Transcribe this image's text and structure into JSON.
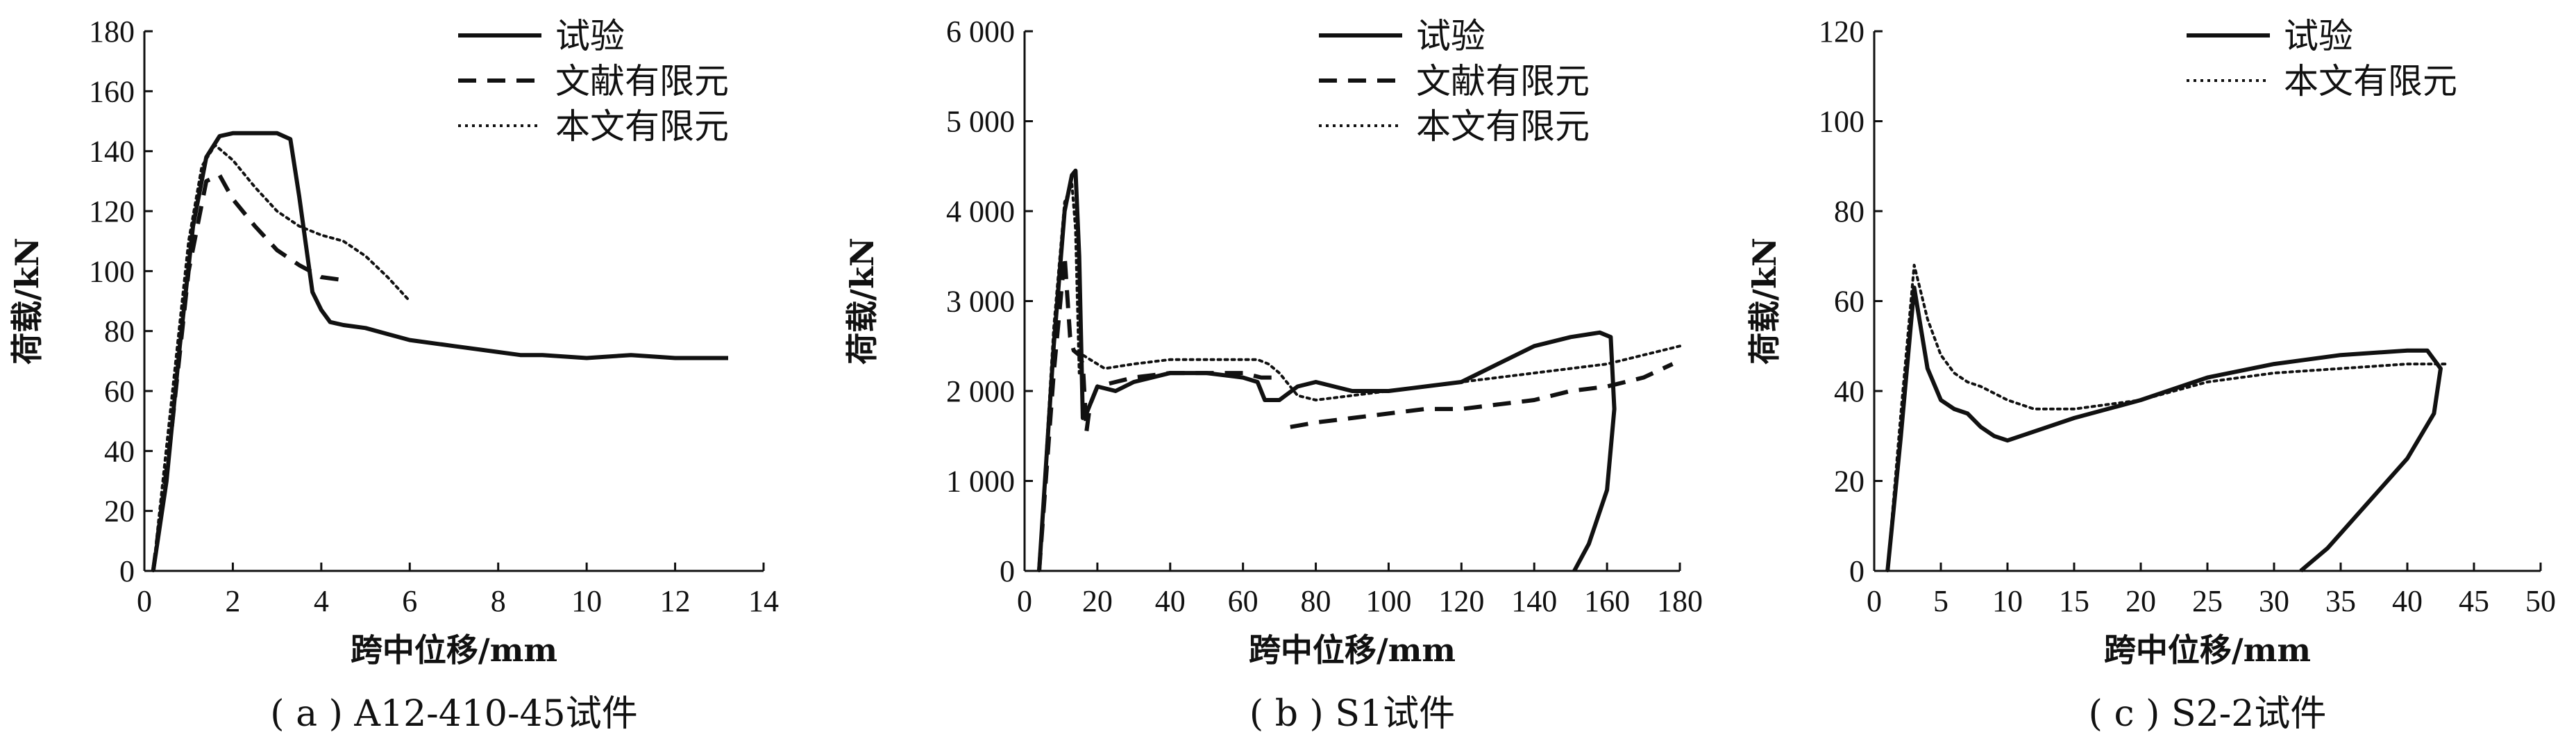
{
  "figure": {
    "panels": [
      {
        "caption": "( a ) A12-410-45试件"
      },
      {
        "caption": "( b ) S1试件"
      },
      {
        "caption": "( c ) S2-2试件"
      }
    ]
  },
  "chart_data": [
    {
      "type": "line",
      "caption": "( a ) A12-410-45试件",
      "xlabel": "跨中位移/mm",
      "ylabel": "荷载/kN",
      "xlim": [
        0,
        14
      ],
      "ylim": [
        0,
        180
      ],
      "xticks": [
        0,
        2,
        4,
        6,
        8,
        10,
        12,
        14
      ],
      "yticks": [
        20,
        40,
        60,
        80,
        100,
        120,
        140,
        160,
        180
      ],
      "ytick_labels": [
        "20",
        "40",
        "60",
        "80",
        "100",
        "120",
        "140",
        "160",
        "180"
      ],
      "legend_position": "top-right",
      "series": [
        {
          "name": "试验",
          "style": "solid",
          "x": [
            0.2,
            0.5,
            0.8,
            1.1,
            1.4,
            1.7,
            2.0,
            2.5,
            3.0,
            3.3,
            3.5,
            3.8,
            4.0,
            4.2,
            4.5,
            5.0,
            5.5,
            6.0,
            7.0,
            8.0,
            8.5,
            9.0,
            10.0,
            11.0,
            12.0,
            13.2
          ],
          "y": [
            0,
            30,
            75,
            115,
            138,
            145,
            146,
            146,
            146,
            144,
            125,
            93,
            87,
            83,
            82,
            81,
            79,
            77,
            75,
            73,
            72,
            72,
            71,
            72,
            71,
            71
          ]
        },
        {
          "name": "文献有限元",
          "style": "dashed",
          "x": [
            0.2,
            0.6,
            1.0,
            1.4,
            1.7,
            2.0,
            2.5,
            3.0,
            3.5,
            4.0,
            4.5
          ],
          "y": [
            0,
            45,
            100,
            130,
            132,
            124,
            115,
            107,
            102,
            98,
            97
          ]
        },
        {
          "name": "本文有限元",
          "style": "dotted",
          "x": [
            0.2,
            0.6,
            1.0,
            1.3,
            1.6,
            2.0,
            2.5,
            3.0,
            3.5,
            4.0,
            4.5,
            5.0,
            5.5,
            6.0
          ],
          "y": [
            0,
            55,
            110,
            135,
            142,
            137,
            128,
            120,
            115,
            112,
            110,
            105,
            98,
            90
          ]
        }
      ]
    },
    {
      "type": "line",
      "caption": "( b ) S1试件",
      "xlabel": "跨中位移/mm",
      "ylabel": "荷载/kN",
      "xlim": [
        0,
        180
      ],
      "ylim": [
        0,
        6000
      ],
      "xticks": [
        0,
        20,
        40,
        60,
        80,
        100,
        120,
        140,
        160,
        180
      ],
      "yticks": [
        1000,
        2000,
        3000,
        4000,
        5000,
        6000
      ],
      "ytick_labels": [
        "1 000",
        "2 000",
        "3 000",
        "4 000",
        "5 000",
        "6 000"
      ],
      "legend_position": "top-right",
      "series": [
        {
          "name": "试验",
          "style": "solid",
          "x": [
            4,
            8,
            11,
            13,
            14,
            15,
            16,
            17,
            18,
            20,
            25,
            30,
            40,
            50,
            60,
            64,
            66,
            70,
            75,
            80,
            90,
            100,
            110,
            120,
            130,
            140,
            150,
            158,
            161,
            162,
            160,
            155,
            151
          ],
          "y": [
            0,
            2500,
            4000,
            4400,
            4450,
            3500,
            1700,
            1750,
            1850,
            2050,
            2000,
            2100,
            2200,
            2200,
            2150,
            2100,
            1900,
            1900,
            2050,
            2100,
            2000,
            2000,
            2050,
            2100,
            2300,
            2500,
            2600,
            2650,
            2600,
            1800,
            900,
            300,
            0
          ]
        },
        {
          "name": "文献有限元",
          "style": "dashed",
          "x": [
            4,
            8,
            11,
            12.5,
            13.5,
            15,
            16,
            17,
            18,
            20,
            25,
            30,
            40,
            50,
            60,
            65,
            68,
            70
          ],
          "y": [
            0,
            2200,
            3500,
            2600,
            2450,
            2400,
            2300,
            1550,
            1850,
            2050,
            2100,
            2150,
            2200,
            2200,
            2200,
            2150,
            2150,
            2100
          ]
        },
        {
          "name": "文献有限元",
          "style": "dashed",
          "x": [
            73,
            80,
            90,
            100,
            110,
            120,
            130,
            140,
            150,
            160,
            170,
            178
          ],
          "y": [
            1600,
            1650,
            1700,
            1750,
            1800,
            1800,
            1850,
            1900,
            2000,
            2050,
            2150,
            2300
          ]
        },
        {
          "name": "本文有限元",
          "style": "dotted",
          "x": [
            4,
            8,
            11,
            13,
            14,
            15,
            16,
            18,
            22,
            30,
            40,
            50,
            60,
            64,
            67,
            70,
            75,
            80,
            90,
            100,
            110,
            120,
            130,
            140,
            150,
            160,
            170,
            180
          ],
          "y": [
            0,
            2700,
            4100,
            4300,
            3800,
            2200,
            2400,
            2350,
            2250,
            2300,
            2350,
            2350,
            2350,
            2350,
            2300,
            2200,
            1950,
            1900,
            1950,
            2000,
            2050,
            2100,
            2150,
            2200,
            2250,
            2300,
            2400,
            2500
          ]
        }
      ]
    },
    {
      "type": "line",
      "caption": "( c ) S2-2试件",
      "xlabel": "跨中位移/mm",
      "ylabel": "荷载/kN",
      "xlim": [
        0,
        50
      ],
      "ylim": [
        0,
        120
      ],
      "xticks": [
        0,
        5,
        10,
        15,
        20,
        25,
        30,
        35,
        40,
        45,
        50
      ],
      "yticks": [
        20,
        40,
        60,
        80,
        100,
        120
      ],
      "ytick_labels": [
        "20",
        "40",
        "60",
        "80",
        "100",
        "120"
      ],
      "legend_position": "top-right",
      "series": [
        {
          "name": "试验",
          "style": "solid",
          "x": [
            1,
            2,
            3,
            4,
            5,
            6,
            7,
            8,
            9,
            10,
            12,
            15,
            20,
            25,
            30,
            35,
            40,
            41.5,
            42.5,
            42,
            40,
            37,
            34,
            32
          ],
          "y": [
            0,
            30,
            63,
            45,
            38,
            36,
            35,
            32,
            30,
            29,
            31,
            34,
            38,
            43,
            46,
            48,
            49,
            49,
            45,
            35,
            25,
            15,
            5,
            0
          ]
        },
        {
          "name": "本文有限元",
          "style": "dotted",
          "x": [
            1,
            2,
            3,
            4,
            5,
            6,
            7,
            8,
            10,
            12,
            15,
            20,
            25,
            30,
            35,
            40,
            43
          ],
          "y": [
            0,
            35,
            68,
            56,
            48,
            44,
            42,
            41,
            38,
            36,
            36,
            38,
            42,
            44,
            45,
            46,
            46
          ]
        }
      ]
    }
  ]
}
